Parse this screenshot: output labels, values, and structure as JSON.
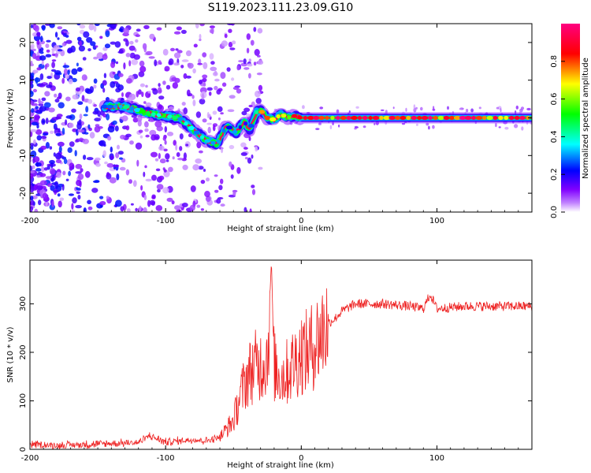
{
  "title": "S119.2023.111.23.09.G10",
  "chart_data": [
    {
      "type": "heatmap",
      "name": "spectrogram",
      "xlabel": "Height of straight line (km)",
      "ylabel": "Frequency (Hz)",
      "xlim": [
        -200,
        170
      ],
      "ylim": [
        -25,
        25
      ],
      "xticks": [
        -200,
        -100,
        0,
        100
      ],
      "yticks": [
        -20,
        -10,
        0,
        10,
        20
      ],
      "colorbar": {
        "label": "Normalized spectral amplitude",
        "range": [
          0.0,
          1.0
        ],
        "ticks": [
          0.0,
          0.2,
          0.4,
          0.6,
          0.8
        ],
        "colormap": [
          "#ffffff",
          "#8000ff",
          "#0000ff",
          "#00ffff",
          "#00ff00",
          "#ffff00",
          "#ff0000",
          "#ff0080"
        ]
      },
      "signal_track": {
        "x": [
          -145,
          -130,
          -120,
          -110,
          -100,
          -90,
          -80,
          -70,
          -62,
          -55,
          -48,
          -42,
          -38,
          -33,
          -30,
          -25,
          -20,
          -15,
          -10,
          -5,
          0,
          50,
          100,
          170
        ],
        "freq": [
          3,
          3,
          2,
          1,
          0.5,
          0,
          -3,
          -6,
          -7,
          -2,
          -4,
          -1,
          -3,
          1.5,
          2,
          0,
          -0.5,
          1,
          0,
          0.5,
          0,
          0,
          0,
          0
        ],
        "amplitude": [
          0.35,
          0.45,
          0.55,
          0.5,
          0.55,
          0.45,
          0.4,
          0.45,
          0.4,
          0.3,
          0.35,
          0.3,
          0.4,
          0.6,
          0.7,
          0.75,
          0.75,
          0.8,
          0.85,
          0.9,
          0.95,
          0.95,
          0.95,
          0.9
        ]
      }
    },
    {
      "type": "line",
      "name": "snr",
      "xlabel": "Height of straight line (km)",
      "ylabel": "SNR (10 * v/v)",
      "xlim": [
        -200,
        170
      ],
      "ylim": [
        0,
        390
      ],
      "xticks": [
        -200,
        -100,
        0,
        100
      ],
      "yticks": [
        0,
        100,
        200,
        300
      ],
      "color": "#ee2222",
      "series": [
        {
          "name": "SNR",
          "x": [
            -200,
            -180,
            -160,
            -140,
            -120,
            -112,
            -100,
            -80,
            -70,
            -60,
            -50,
            -45,
            -40,
            -35,
            -30,
            -25,
            -22,
            -20,
            -15,
            -10,
            -5,
            0,
            5,
            10,
            15,
            20,
            25,
            30,
            40,
            60,
            80,
            90,
            95,
            100,
            120,
            140,
            160,
            170
          ],
          "values": [
            10,
            8,
            10,
            12,
            14,
            28,
            15,
            20,
            18,
            25,
            60,
            110,
            150,
            170,
            175,
            190,
            390,
            170,
            150,
            160,
            180,
            200,
            200,
            220,
            240,
            260,
            270,
            285,
            300,
            300,
            295,
            290,
            320,
            290,
            295,
            295,
            295,
            295
          ]
        }
      ]
    }
  ]
}
